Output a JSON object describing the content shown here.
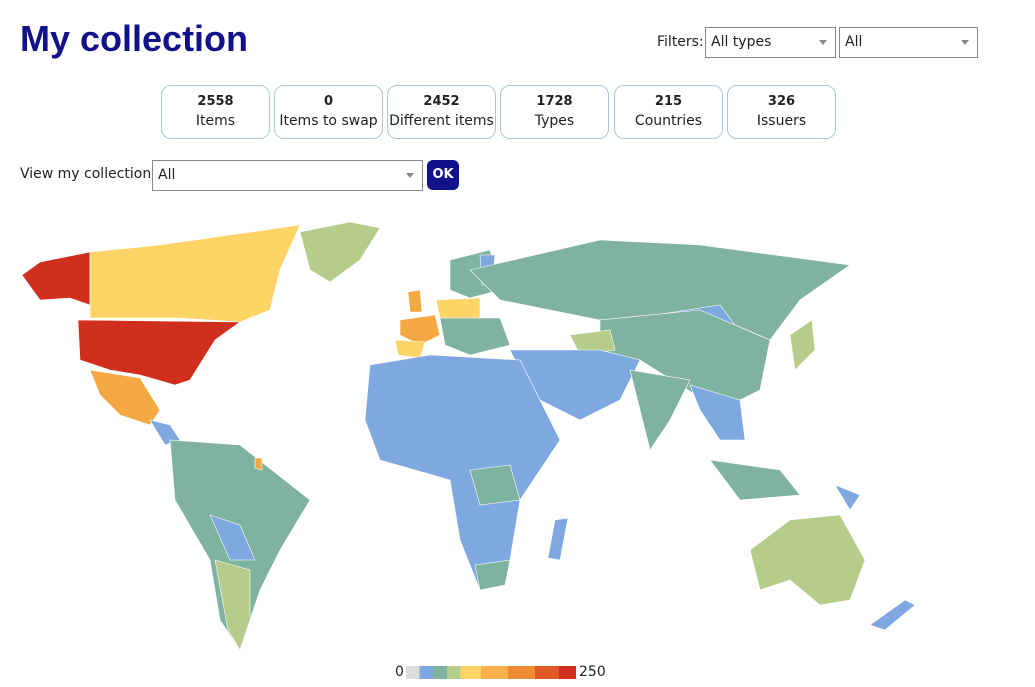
{
  "header": {
    "title": "My collection",
    "filters_label": "Filters:",
    "filter_type": "All types",
    "filter_scope": "All"
  },
  "stats": [
    {
      "value": 2558,
      "label": "Items"
    },
    {
      "value": 0,
      "label": "Items to swap"
    },
    {
      "value": 2452,
      "label": "Different items"
    },
    {
      "value": 1728,
      "label": "Types"
    },
    {
      "value": 215,
      "label": "Countries"
    },
    {
      "value": 326,
      "label": "Issuers"
    }
  ],
  "view": {
    "label": "View my collection:",
    "select": "All",
    "button": "OK"
  },
  "legend": {
    "min": 0,
    "max": 250
  }
}
